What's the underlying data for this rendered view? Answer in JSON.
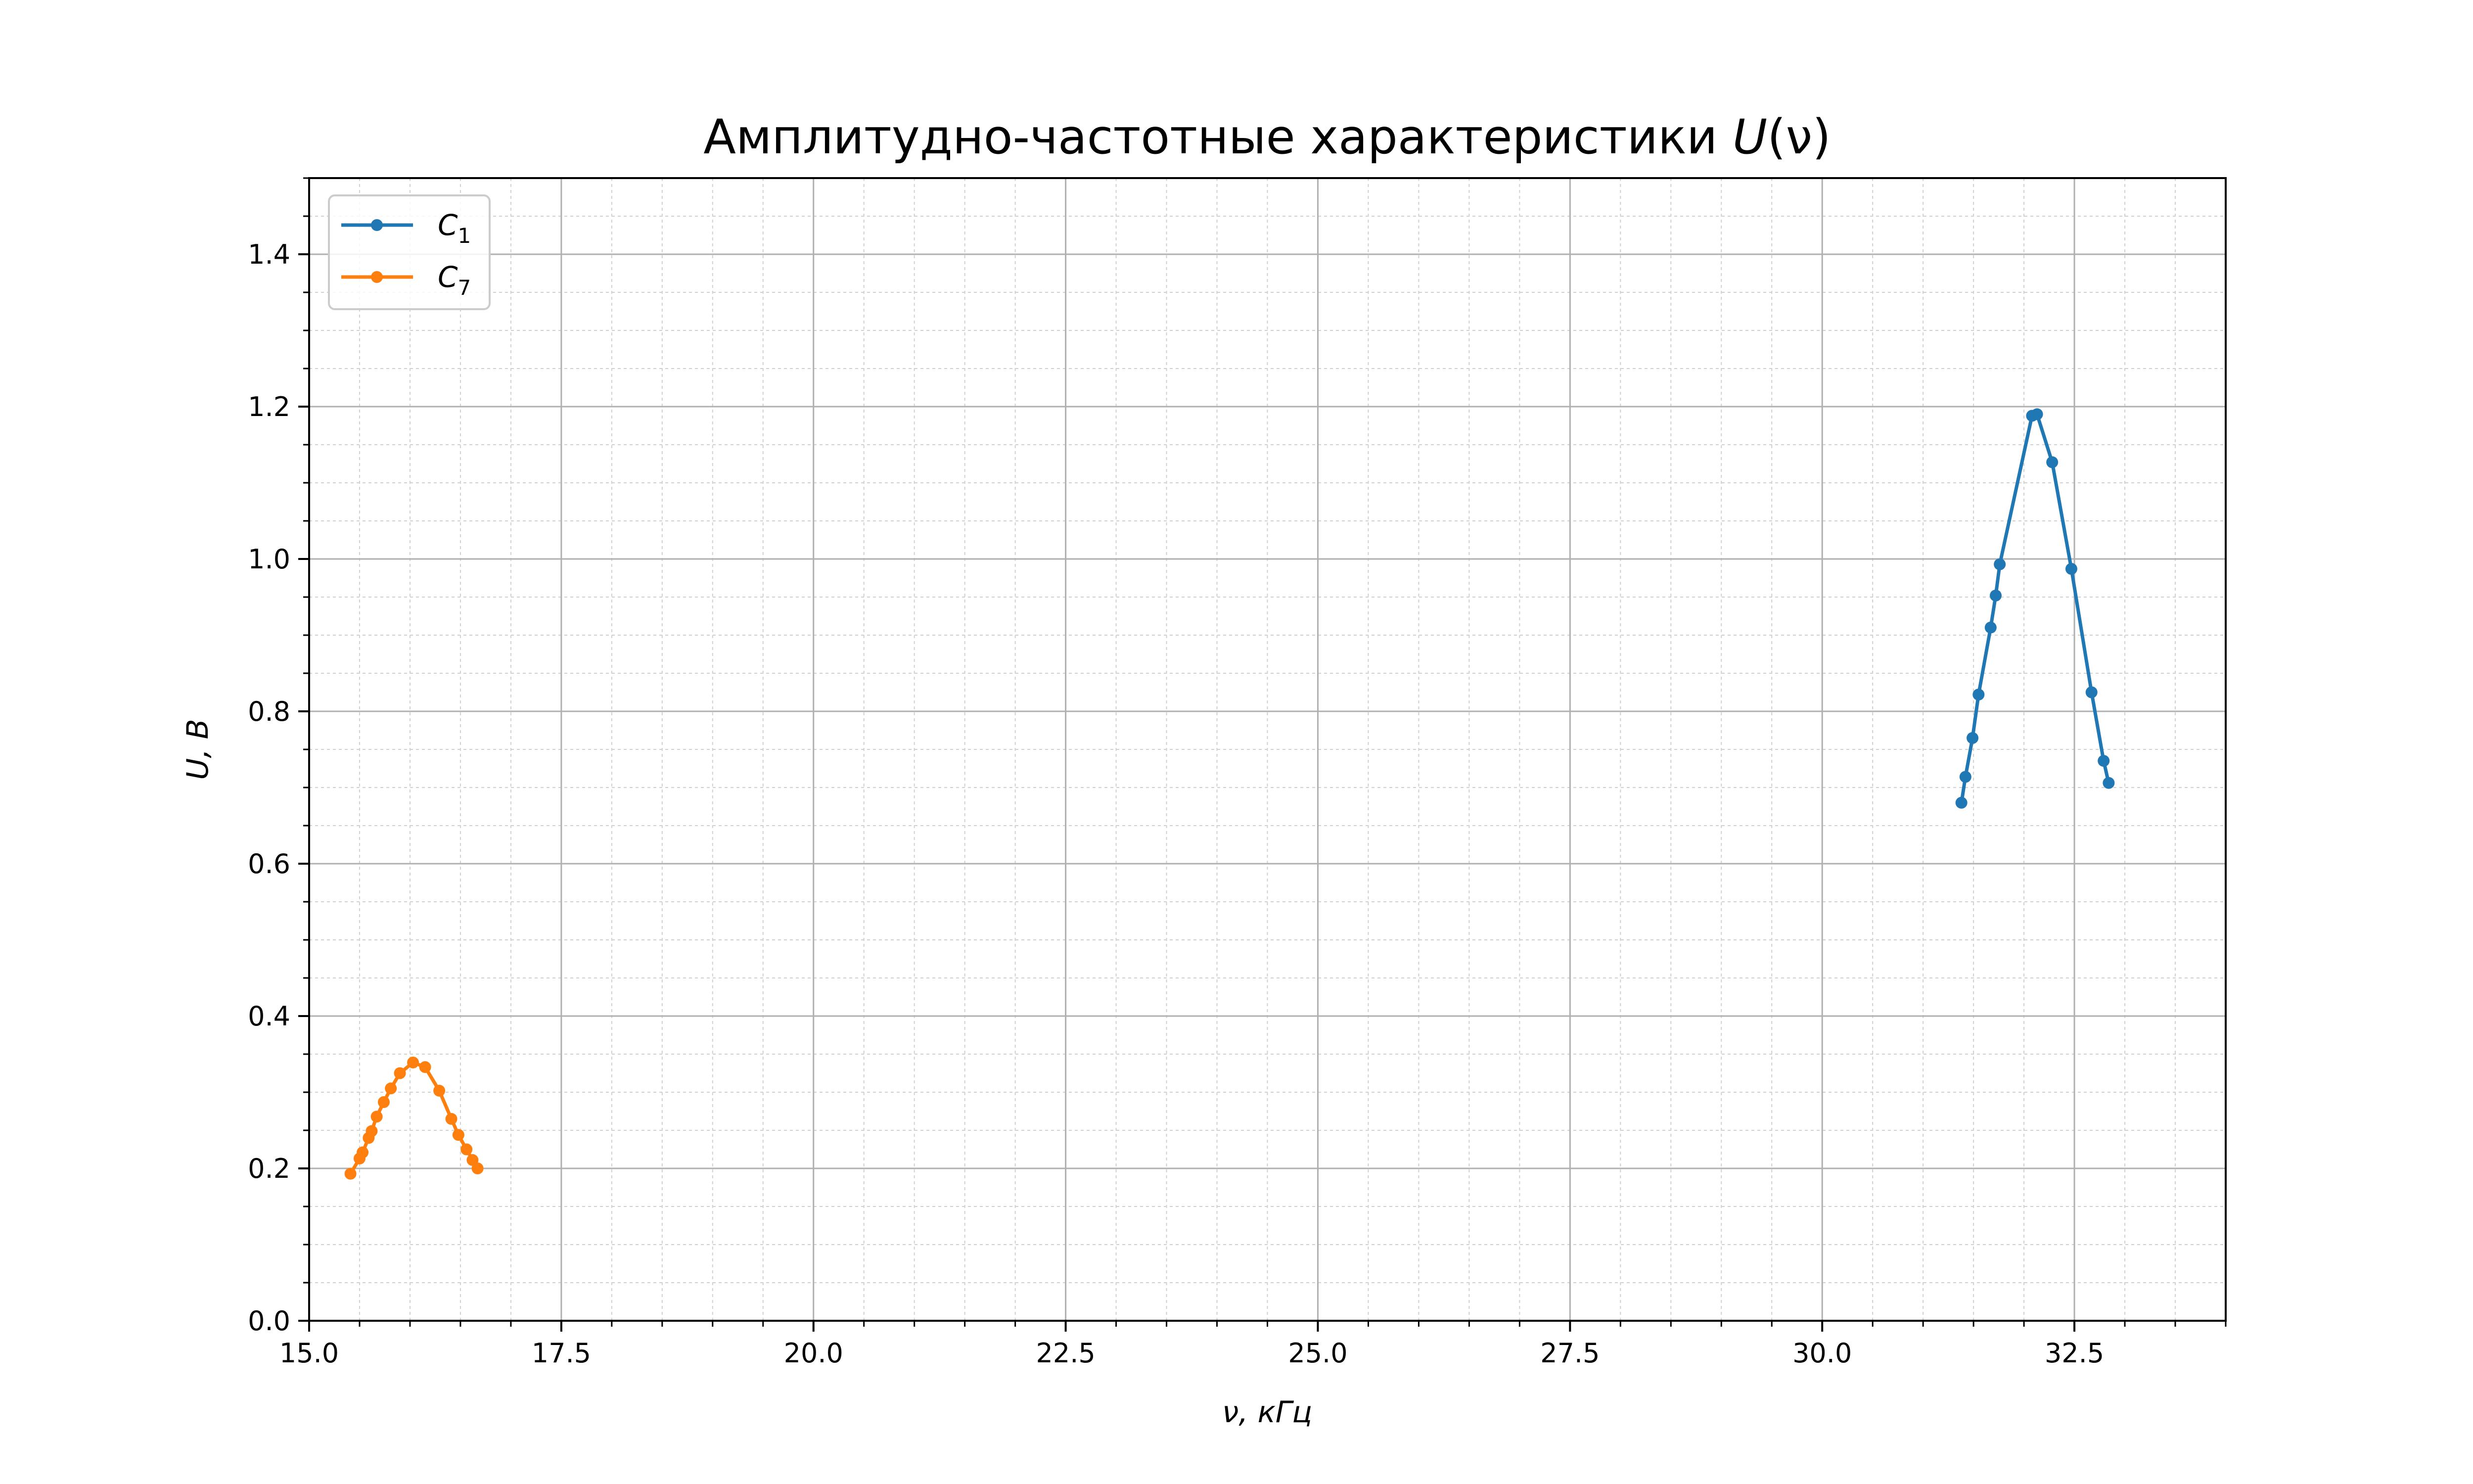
{
  "chart_data": {
    "type": "line",
    "title_main": "Амплитудно-частотные характеристики ",
    "title_math": "U",
    "title_paren": "(ν)",
    "xlabel": "ν, кГц",
    "ylabel": "U, В",
    "xlim": [
      15.0,
      34.0
    ],
    "ylim": [
      0.0,
      1.5
    ],
    "xticks": [
      15.0,
      17.5,
      20.0,
      22.5,
      25.0,
      27.5,
      30.0,
      32.5
    ],
    "xtick_labels": [
      "15.0",
      "17.5",
      "20.0",
      "22.5",
      "25.0",
      "27.5",
      "30.0",
      "32.5"
    ],
    "yticks": [
      0.0,
      0.2,
      0.4,
      0.6,
      0.8,
      1.0,
      1.2,
      1.4
    ],
    "ytick_labels": [
      "0.0",
      "0.2",
      "0.4",
      "0.6",
      "0.8",
      "1.0",
      "1.2",
      "1.4"
    ],
    "grid": true,
    "minor_grid": true,
    "legend_position": "top-left",
    "series": [
      {
        "name": "C",
        "name_sub": "1",
        "color": "#1f77b4",
        "x": [
          31.38,
          31.42,
          31.49,
          31.55,
          31.67,
          31.72,
          31.76,
          32.08,
          32.13,
          32.28,
          32.47,
          32.67,
          32.79,
          32.84
        ],
        "y": [
          0.68,
          0.714,
          0.765,
          0.822,
          0.91,
          0.952,
          0.993,
          1.188,
          1.19,
          1.127,
          0.987,
          0.825,
          0.735,
          0.706
        ]
      },
      {
        "name": "C",
        "name_sub": "7",
        "color": "#ff7f0e",
        "x": [
          15.41,
          15.5,
          15.53,
          15.59,
          15.62,
          15.67,
          15.74,
          15.81,
          15.9,
          16.03,
          16.15,
          16.29,
          16.41,
          16.48,
          16.56,
          16.62,
          16.67
        ],
        "y": [
          0.193,
          0.213,
          0.221,
          0.24,
          0.249,
          0.268,
          0.287,
          0.305,
          0.325,
          0.339,
          0.333,
          0.302,
          0.265,
          0.244,
          0.225,
          0.211,
          0.2
        ]
      }
    ]
  }
}
